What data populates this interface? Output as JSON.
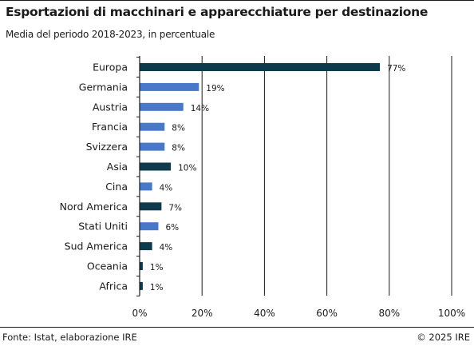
{
  "header": {
    "title": "Esportazioni di macchinari e apparecchiature per destinazione",
    "subtitle": "Media del periodo 2018-2023, in percentuale"
  },
  "footer": {
    "source": "Fonte: Istat, elaborazione IRE",
    "copyright": "© 2025 IRE"
  },
  "colors": {
    "dark": "#0f3a4c",
    "light": "#4a78c8",
    "grid": "#1a1a1a"
  },
  "chart_data": {
    "type": "bar",
    "orientation": "horizontal",
    "categories": [
      "Europa",
      "Germania",
      "Austria",
      "Francia",
      "Svizzera",
      "Asia",
      "Cina",
      "Nord America",
      "Stati Uniti",
      "Sud America",
      "Oceania",
      "Africa"
    ],
    "values": [
      77,
      19,
      14,
      8,
      8,
      10,
      4,
      7,
      6,
      4,
      1,
      1
    ],
    "value_labels": [
      "77%",
      "19%",
      "14%",
      "8%",
      "8%",
      "10%",
      "4%",
      "7%",
      "6%",
      "4%",
      "1%",
      "1%"
    ],
    "bar_groups": [
      "region",
      "country",
      "country",
      "country",
      "country",
      "region",
      "country",
      "region",
      "country",
      "region",
      "region",
      "region"
    ],
    "xlim": [
      0,
      100
    ],
    "xticks": [
      0,
      20,
      40,
      60,
      80,
      100
    ],
    "xtick_labels": [
      "0%",
      "20%",
      "40%",
      "60%",
      "80%",
      "100%"
    ],
    "grid": true,
    "title": "Esportazioni di macchinari e apparecchiature per destinazione",
    "xlabel": "",
    "ylabel": ""
  }
}
